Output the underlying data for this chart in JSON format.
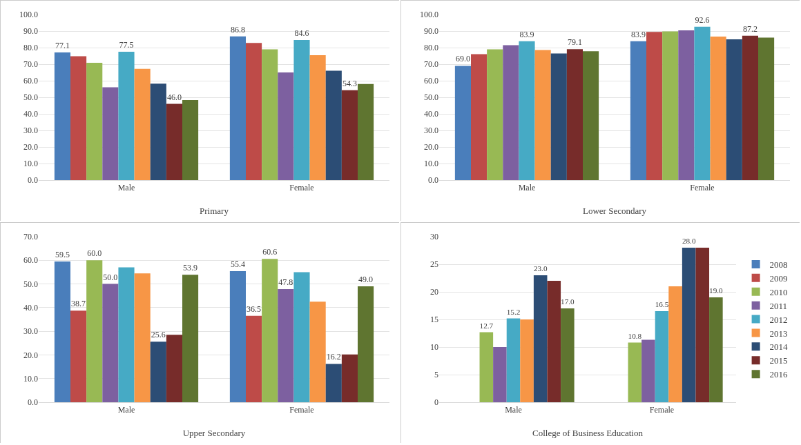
{
  "chart_data": [
    {
      "type": "bar",
      "xlabel": "Primary",
      "categories": [
        "Male",
        "Female"
      ],
      "ylim": [
        0,
        100
      ],
      "yticks": [
        {
          "value": 0,
          "label": "0.0"
        },
        {
          "value": 10,
          "label": "10.0"
        },
        {
          "value": 20,
          "label": "20.0"
        },
        {
          "value": 30,
          "label": "30.0"
        },
        {
          "value": 40,
          "label": "40.0"
        },
        {
          "value": 50,
          "label": "50.0"
        },
        {
          "value": 60,
          "label": "60.0"
        },
        {
          "value": 70,
          "label": "70.0"
        },
        {
          "value": 80,
          "label": "80.0"
        },
        {
          "value": 90,
          "label": "90.0"
        },
        {
          "value": 100,
          "label": "100.0"
        }
      ],
      "grid": "y",
      "legend": false,
      "series": [
        {
          "color": "#4a7ebb",
          "values": [
            77.1,
            86.8
          ],
          "value_labels": [
            "77.1",
            "86.8"
          ]
        },
        {
          "color": "#be4b48",
          "values": [
            74.8,
            82.8
          ]
        },
        {
          "color": "#98b954",
          "values": [
            70.8,
            79
          ]
        },
        {
          "color": "#7d60a0",
          "values": [
            56,
            65
          ]
        },
        {
          "color": "#46aac5",
          "values": [
            77.5,
            84.6
          ],
          "value_labels": [
            "77.5",
            "84.6"
          ]
        },
        {
          "color": "#f79646",
          "values": [
            67.2,
            75.4
          ]
        },
        {
          "color": "#2c4d75",
          "values": [
            58.2,
            66
          ]
        },
        {
          "color": "#772c2a",
          "values": [
            46.0,
            54.3
          ],
          "value_labels": [
            "46.0",
            "54.3"
          ]
        },
        {
          "color": "#5f7530",
          "values": [
            48.3,
            58
          ]
        }
      ]
    },
    {
      "type": "bar",
      "xlabel": "Lower Secondary",
      "categories": [
        "Male",
        "Female"
      ],
      "ylim": [
        0,
        100
      ],
      "yticks": [
        {
          "value": 0,
          "label": "0.0"
        },
        {
          "value": 10,
          "label": "10.0"
        },
        {
          "value": 20,
          "label": "20.0"
        },
        {
          "value": 30,
          "label": "30.0"
        },
        {
          "value": 40,
          "label": "40.0"
        },
        {
          "value": 50,
          "label": "50.0"
        },
        {
          "value": 60,
          "label": "60.0"
        },
        {
          "value": 70,
          "label": "70.0"
        },
        {
          "value": 80,
          "label": "80.0"
        },
        {
          "value": 90,
          "label": "90.0"
        },
        {
          "value": 100,
          "label": "100.0"
        }
      ],
      "grid": "y",
      "legend": false,
      "series": [
        {
          "color": "#4a7ebb",
          "values": [
            69.0,
            83.9
          ],
          "value_labels": [
            "69.0",
            "83.9"
          ]
        },
        {
          "color": "#be4b48",
          "values": [
            76,
            89.5
          ]
        },
        {
          "color": "#98b954",
          "values": [
            79,
            89.8
          ]
        },
        {
          "color": "#7d60a0",
          "values": [
            81.5,
            90.4
          ]
        },
        {
          "color": "#46aac5",
          "values": [
            83.9,
            92.6
          ],
          "value_labels": [
            "83.9",
            "92.6"
          ]
        },
        {
          "color": "#f79646",
          "values": [
            78.5,
            86.7
          ]
        },
        {
          "color": "#2c4d75",
          "values": [
            76.5,
            85
          ]
        },
        {
          "color": "#772c2a",
          "values": [
            79.1,
            87.2
          ],
          "value_labels": [
            "79.1",
            "87.2"
          ]
        },
        {
          "color": "#5f7530",
          "values": [
            77.8,
            86
          ]
        }
      ]
    },
    {
      "type": "bar",
      "xlabel": "Upper Secondary",
      "categories": [
        "Male",
        "Female"
      ],
      "ylim": [
        0,
        70
      ],
      "yticks": [
        {
          "value": 0,
          "label": "0.0"
        },
        {
          "value": 10,
          "label": "10.0"
        },
        {
          "value": 20,
          "label": "20.0"
        },
        {
          "value": 30,
          "label": "30.0"
        },
        {
          "value": 40,
          "label": "40.0"
        },
        {
          "value": 50,
          "label": "50.0"
        },
        {
          "value": 60,
          "label": "60.0"
        },
        {
          "value": 70,
          "label": "70.0"
        }
      ],
      "grid": "y",
      "legend": false,
      "series": [
        {
          "color": "#4a7ebb",
          "values": [
            59.5,
            55.4
          ],
          "value_labels": [
            "59.5",
            "55.4"
          ]
        },
        {
          "color": "#be4b48",
          "values": [
            38.7,
            36.5
          ],
          "value_labels": [
            "38.7",
            "36.5"
          ]
        },
        {
          "color": "#98b954",
          "values": [
            60.0,
            60.6
          ],
          "value_labels": [
            "60.0",
            "60.6"
          ]
        },
        {
          "color": "#7d60a0",
          "values": [
            50.0,
            47.8
          ],
          "value_labels": [
            "50.0",
            "47.8"
          ]
        },
        {
          "color": "#46aac5",
          "values": [
            57,
            55
          ]
        },
        {
          "color": "#f79646",
          "values": [
            54.5,
            42.5
          ]
        },
        {
          "color": "#2c4d75",
          "values": [
            25.6,
            16.2
          ],
          "value_labels": [
            "25.6",
            "16.2"
          ]
        },
        {
          "color": "#772c2a",
          "values": [
            28.5,
            20.2
          ]
        },
        {
          "color": "#5f7530",
          "values": [
            53.9,
            49.0
          ],
          "value_labels": [
            "53.9",
            "49.0"
          ]
        }
      ]
    },
    {
      "type": "bar",
      "xlabel": "College of Business Education",
      "categories": [
        "Male",
        "Female"
      ],
      "ylim": [
        0,
        30
      ],
      "yticks": [
        0,
        5,
        10,
        15,
        20,
        25,
        30
      ],
      "grid": "y",
      "legend": "right",
      "series": [
        {
          "name": "2008",
          "color": "#4a7ebb",
          "values": [
            null,
            null
          ]
        },
        {
          "name": "2009",
          "color": "#be4b48",
          "values": [
            null,
            null
          ]
        },
        {
          "name": "2010",
          "color": "#98b954",
          "values": [
            12.7,
            10.8
          ],
          "value_labels": [
            "12.7",
            "10.8"
          ]
        },
        {
          "name": "2011",
          "color": "#7d60a0",
          "values": [
            10,
            11.3
          ]
        },
        {
          "name": "2012",
          "color": "#46aac5",
          "values": [
            15.2,
            16.5
          ],
          "value_labels": [
            "15.2",
            "16.5"
          ]
        },
        {
          "name": "2013",
          "color": "#f79646",
          "values": [
            15,
            21
          ]
        },
        {
          "name": "2014",
          "color": "#2c4d75",
          "values": [
            23.0,
            28.0
          ],
          "value_labels": [
            "23.0",
            "28.0"
          ]
        },
        {
          "name": "2015",
          "color": "#772c2a",
          "values": [
            22,
            28
          ]
        },
        {
          "name": "2016",
          "color": "#5f7530",
          "values": [
            17.0,
            19.0
          ],
          "value_labels": [
            "17.0",
            "19.0"
          ]
        }
      ]
    }
  ]
}
